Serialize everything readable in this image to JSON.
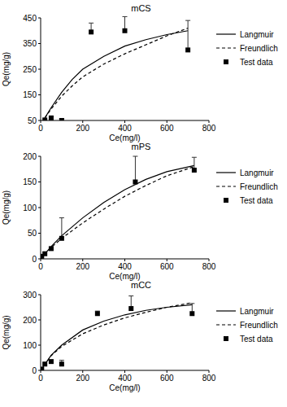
{
  "chart_data": [
    {
      "type": "scatter",
      "title": "mCS",
      "x_label": "Ce(mg/l)",
      "y_label": "Qe(mg/g)",
      "xlim": [
        0,
        800
      ],
      "xticks": [
        0,
        200,
        400,
        600,
        800
      ],
      "ylim": [
        50,
        450
      ],
      "yticks": [
        50,
        150,
        250,
        350,
        450
      ],
      "legend": "right",
      "series": [
        {
          "name": "Langmuir",
          "type": "line",
          "line_style": "solid",
          "color": "#000000",
          "x": [
            20,
            50,
            100,
            150,
            200,
            300,
            400,
            500,
            600,
            700
          ],
          "values": [
            60,
            100,
            160,
            210,
            250,
            300,
            340,
            365,
            385,
            400
          ]
        },
        {
          "name": "Freundlich",
          "type": "line",
          "line_style": "dashed",
          "color": "#000000",
          "x": [
            20,
            50,
            100,
            150,
            200,
            300,
            400,
            500,
            600,
            700
          ],
          "values": [
            60,
            95,
            145,
            185,
            220,
            270,
            310,
            345,
            380,
            410
          ]
        },
        {
          "name": "Test data",
          "type": "scatter",
          "marker": "square",
          "color": "#000000",
          "x": [
            20,
            50,
            100,
            240,
            400,
            700
          ],
          "values": [
            52,
            60,
            50,
            395,
            400,
            325
          ],
          "errors": [
            null,
            null,
            8,
            35,
            55,
            115
          ]
        }
      ]
    },
    {
      "type": "scatter",
      "title": "mPS",
      "x_label": "Ce(mg/l)",
      "y_label": "Qe(mg/g)",
      "xlim": [
        0,
        800
      ],
      "xticks": [
        0,
        200,
        400,
        600,
        800
      ],
      "ylim": [
        0,
        200
      ],
      "yticks": [
        0,
        50,
        100,
        150,
        200
      ],
      "legend": "right",
      "series": [
        {
          "name": "Langmuir",
          "type": "line",
          "line_style": "solid",
          "color": "#000000",
          "x": [
            0,
            50,
            100,
            200,
            300,
            400,
            500,
            600,
            730
          ],
          "values": [
            0,
            24,
            45,
            80,
            110,
            135,
            155,
            170,
            182
          ]
        },
        {
          "name": "Freundlich",
          "type": "line",
          "line_style": "dashed",
          "color": "#000000",
          "x": [
            0,
            50,
            100,
            200,
            300,
            400,
            500,
            600,
            730
          ],
          "values": [
            0,
            22,
            40,
            70,
            97,
            122,
            143,
            162,
            180
          ]
        },
        {
          "name": "Test data",
          "type": "scatter",
          "marker": "square",
          "color": "#000000",
          "x": [
            5,
            20,
            50,
            100,
            450,
            730
          ],
          "values": [
            5,
            10,
            20,
            40,
            150,
            173
          ],
          "errors": [
            null,
            null,
            null,
            40,
            50,
            25
          ]
        }
      ]
    },
    {
      "type": "scatter",
      "title": "mCC",
      "x_label": "Ce(mg/l)",
      "y_label": "Qe(mg/g)",
      "xlim": [
        0,
        800
      ],
      "xticks": [
        0,
        200,
        400,
        600,
        800
      ],
      "ylim": [
        0,
        300
      ],
      "yticks": [
        0,
        100,
        200,
        300
      ],
      "legend": "right",
      "series": [
        {
          "name": "Langmuir",
          "type": "line",
          "line_style": "solid",
          "color": "#000000",
          "x": [
            0,
            50,
            100,
            200,
            300,
            400,
            500,
            600,
            720
          ],
          "values": [
            0,
            60,
            100,
            160,
            195,
            220,
            238,
            250,
            260
          ]
        },
        {
          "name": "Freundlich",
          "type": "line",
          "line_style": "dashed",
          "color": "#000000",
          "x": [
            0,
            50,
            100,
            200,
            300,
            400,
            500,
            600,
            720
          ],
          "values": [
            0,
            58,
            95,
            145,
            180,
            208,
            230,
            250,
            268
          ]
        },
        {
          "name": "Test data",
          "type": "scatter",
          "marker": "square",
          "color": "#000000",
          "x": [
            5,
            20,
            50,
            100,
            270,
            430,
            720
          ],
          "values": [
            5,
            25,
            35,
            25,
            225,
            245,
            225
          ],
          "errors": [
            null,
            null,
            null,
            15,
            10,
            50,
            40
          ]
        }
      ]
    }
  ]
}
